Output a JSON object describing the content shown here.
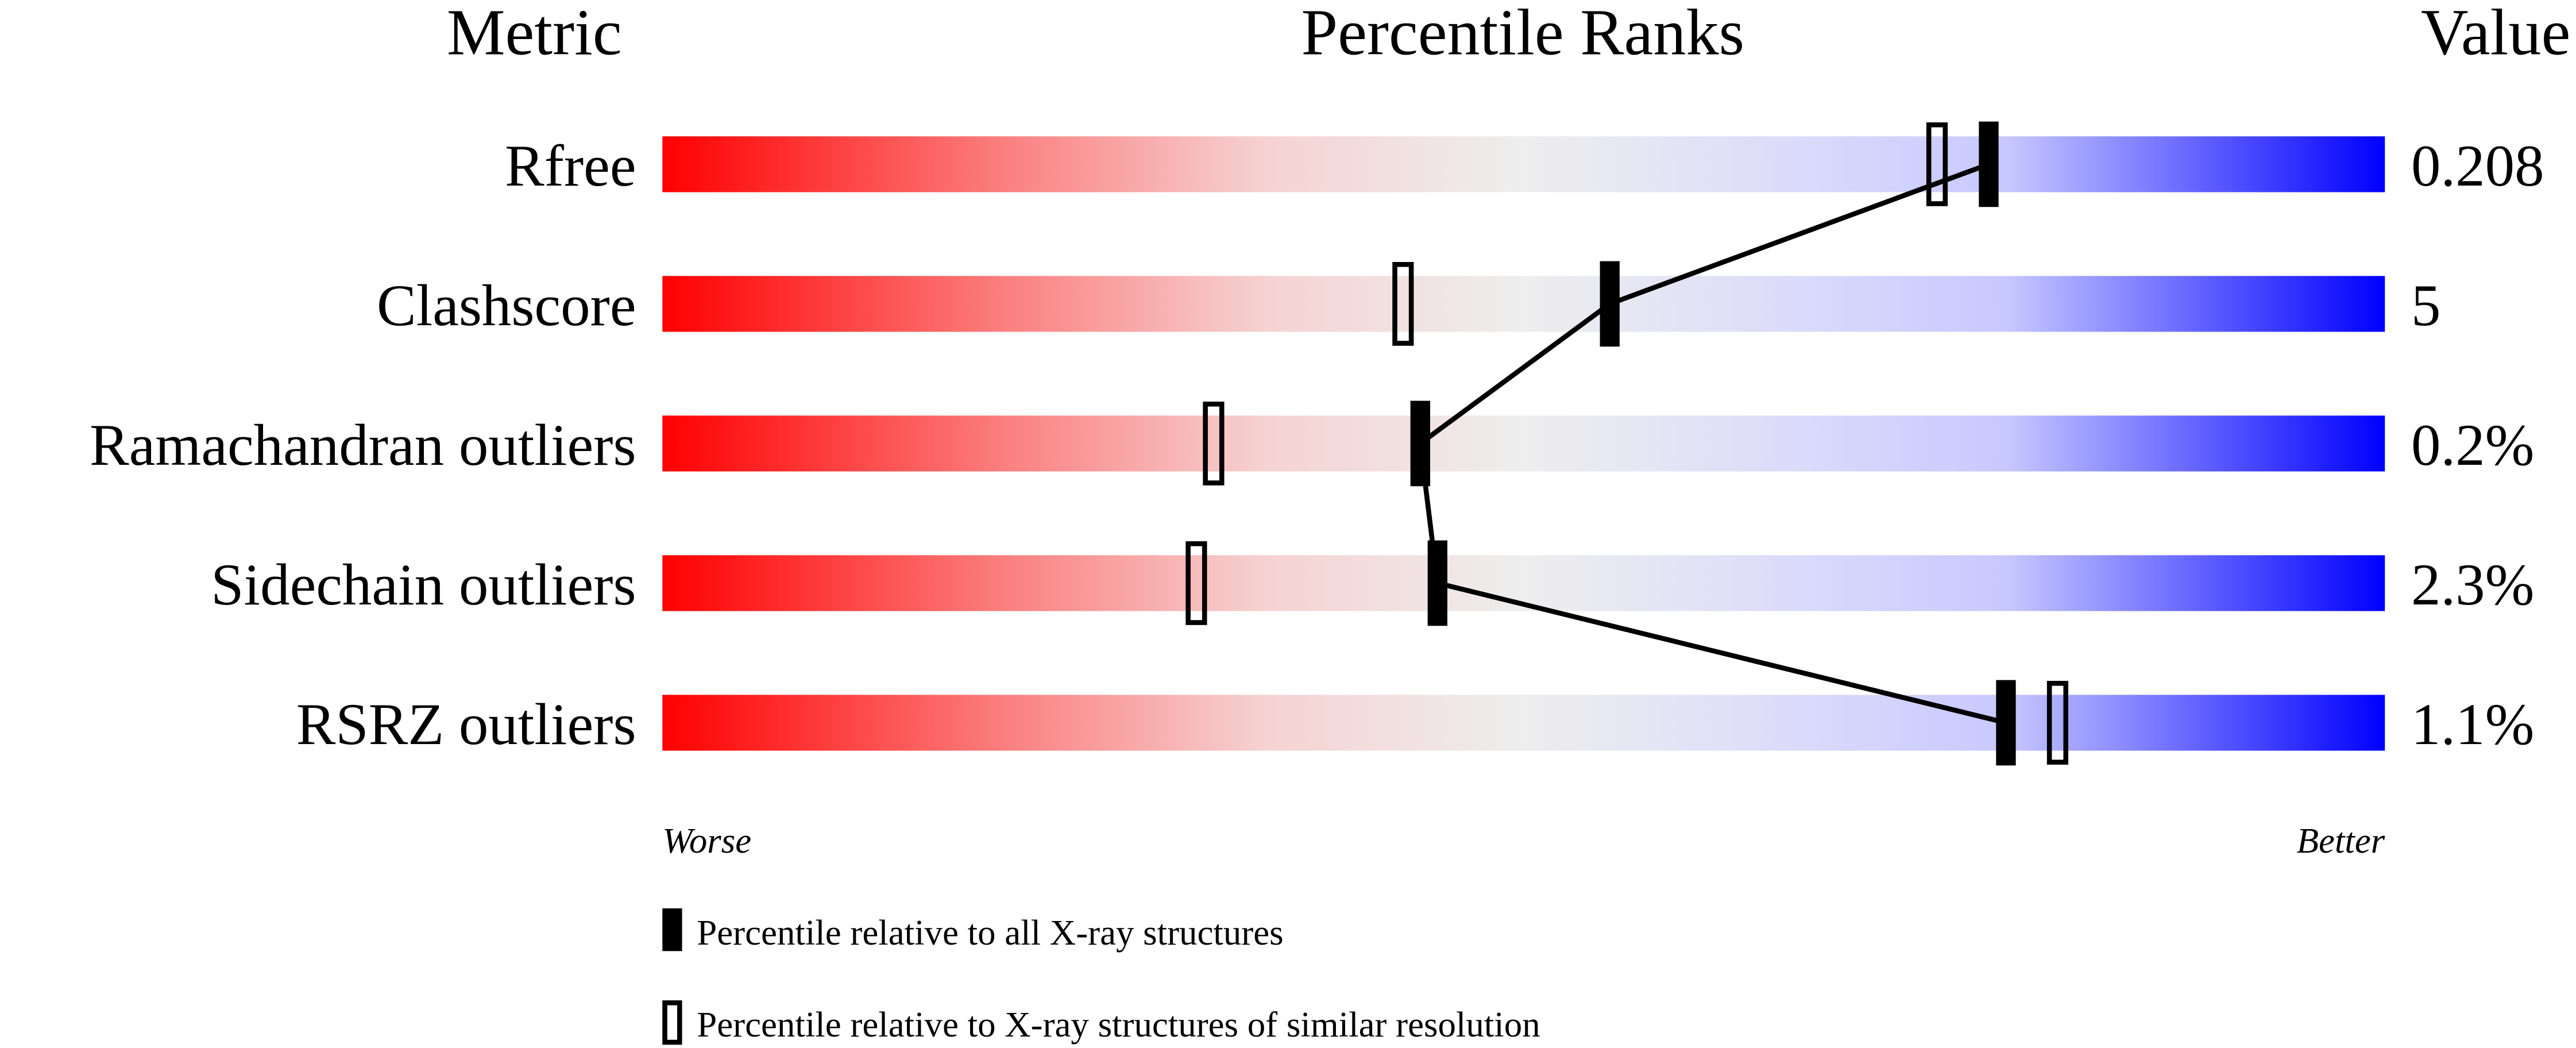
{
  "chart_data": {
    "type": "percentile-bar",
    "headers": {
      "metric": "Metric",
      "ranks": "Percentile Ranks",
      "value": "Value"
    },
    "xlim": [
      0,
      100
    ],
    "axis_labels": {
      "left": "Worse",
      "right": "Better"
    },
    "gradient_colors": [
      "#ff0000",
      "#f0f0f0",
      "#0000ff"
    ],
    "rows": [
      {
        "metric": "Rfree",
        "value": "0.208",
        "percentile_all": 77,
        "percentile_similar": 74
      },
      {
        "metric": "Clashscore",
        "value": "5",
        "percentile_all": 55,
        "percentile_similar": 43
      },
      {
        "metric": "Ramachandran outliers",
        "value": "0.2%",
        "percentile_all": 44,
        "percentile_similar": 32
      },
      {
        "metric": "Sidechain outliers",
        "value": "2.3%",
        "percentile_all": 45,
        "percentile_similar": 31
      },
      {
        "metric": "RSRZ outliers",
        "value": "1.1%",
        "percentile_all": 78,
        "percentile_similar": 81
      }
    ],
    "legend": [
      {
        "marker": "filled",
        "label": "Percentile relative to all X-ray structures"
      },
      {
        "marker": "open",
        "label": "Percentile relative to X-ray structures of similar resolution"
      }
    ]
  }
}
